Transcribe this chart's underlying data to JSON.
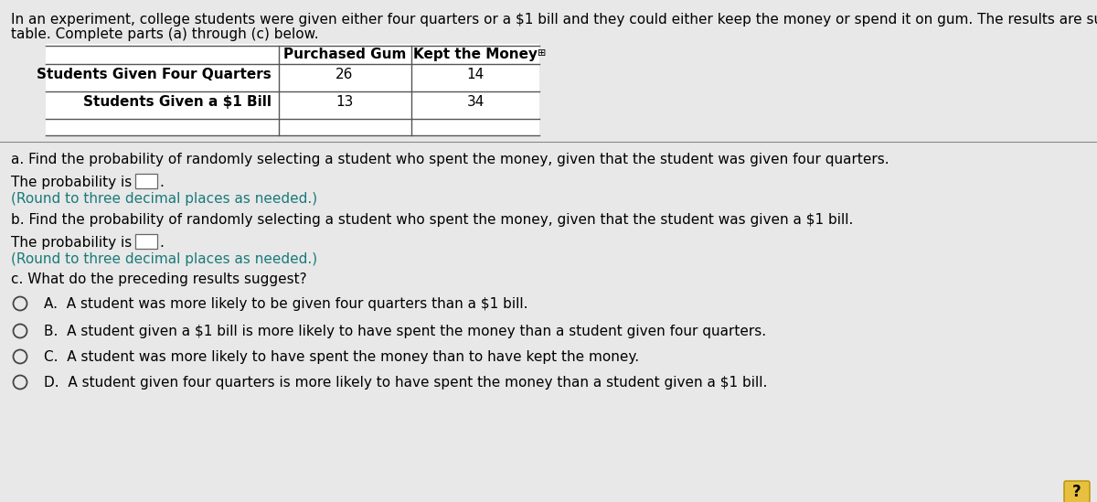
{
  "background_color": "#c8c8c8",
  "panel_color": "#e8e8e8",
  "white_color": "#ffffff",
  "text_color": "#000000",
  "teal_color": "#1a7a7a",
  "intro_line1": "In an experiment, college students were given either four quarters or a $1 bill and they could either keep the money or spend it on gum. The results are summarized in the",
  "intro_line2": "table. Complete parts (a) through (c) below.",
  "table_col_headers": [
    "Purchased Gum",
    "Kept the Money"
  ],
  "table_row_labels": [
    "Students Given Four Quarters",
    "Students Given a $1 Bill"
  ],
  "table_values": [
    [
      26,
      14
    ],
    [
      13,
      34
    ]
  ],
  "part_a_q": "a. Find the probability of randomly selecting a student who spent the money, given that the student was given four quarters.",
  "part_a_ans": "The probability is",
  "part_a_note": "(Round to three decimal places as needed.)",
  "part_b_q": "b. Find the probability of randomly selecting a student who spent the money, given that the student was given a $1 bill.",
  "part_b_ans": "The probability is",
  "part_b_note": "(Round to three decimal places as needed.)",
  "part_c_q": "c. What do the preceding results suggest?",
  "options": [
    "A.  A student was more likely to be given four quarters than a $1 bill.",
    "B.  A student given a $1 bill is more likely to have spent the money than a student given four quarters.",
    "C.  A student was more likely to have spent the money than to have kept the money.",
    "D.  A student given four quarters is more likely to have spent the money than a student given a $1 bill."
  ],
  "fs": 11.0,
  "fs_small": 9.5
}
